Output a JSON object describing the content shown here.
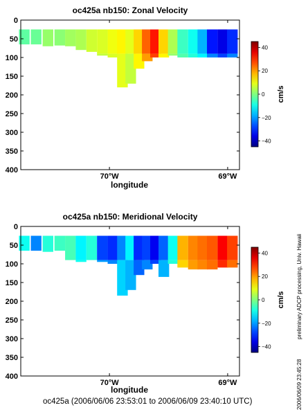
{
  "chart_data": [
    {
      "type": "heatmap",
      "title": "oc425a nb150: Zonal Velocity",
      "xlabel": "longitude",
      "ylabel": "",
      "x_tick_labels": [
        "70°W",
        "69°W"
      ],
      "x_ticks": [
        -70,
        -69
      ],
      "xlim": [
        -70.75,
        -68.9
      ],
      "ylim": [
        400,
        0
      ],
      "y_ticks": [
        0,
        50,
        100,
        150,
        200,
        250,
        300,
        350,
        400
      ],
      "y_tick_labels": [
        "0",
        "50",
        "100",
        "150",
        "200",
        "250",
        "300",
        "350",
        "400"
      ],
      "colorbar": {
        "label": "cm/s",
        "min": -45,
        "max": 45,
        "ticks": [
          40,
          20,
          0,
          -20,
          -40
        ],
        "tick_labels": [
          "40",
          "20",
          "0",
          "−20",
          "−40"
        ]
      },
      "grid": false,
      "description_of_field": "Zonal velocity section: weak westward (~-5 to 0 cm/s) on western shelf, strong eastward jet (~30 cm/s) near 69.6°W, strong westward flow (~-35 cm/s) near 69.1°W in upper 100 m",
      "columns": [
        {
          "lon": -70.72,
          "zmax": 65,
          "v": [
            -3,
            -2
          ]
        },
        {
          "lon": -70.62,
          "zmax": 65,
          "v": [
            -2,
            0
          ]
        },
        {
          "lon": -70.52,
          "zmax": 70,
          "v": [
            2,
            3
          ]
        },
        {
          "lon": -70.42,
          "zmax": 68,
          "v": [
            1,
            3
          ]
        },
        {
          "lon": -70.33,
          "zmax": 70,
          "v": [
            3,
            5
          ]
        },
        {
          "lon": -70.24,
          "zmax": 80,
          "v": [
            4,
            6
          ]
        },
        {
          "lon": -70.15,
          "zmax": 85,
          "v": [
            7,
            5
          ]
        },
        {
          "lon": -70.06,
          "zmax": 95,
          "v": [
            8,
            6
          ]
        },
        {
          "lon": -69.97,
          "zmax": 100,
          "v": [
            10,
            8
          ]
        },
        {
          "lon": -69.89,
          "zmax": 180,
          "v": [
            12,
            9
          ]
        },
        {
          "lon": -69.82,
          "zmax": 170,
          "v": [
            9,
            6
          ]
        },
        {
          "lon": -69.75,
          "zmax": 130,
          "v": [
            15,
            12
          ]
        },
        {
          "lon": -69.68,
          "zmax": 110,
          "v": [
            25,
            20
          ]
        },
        {
          "lon": -69.61,
          "zmax": 100,
          "v": [
            32,
            28
          ]
        },
        {
          "lon": -69.54,
          "zmax": 100,
          "v": [
            15,
            12
          ]
        },
        {
          "lon": -69.46,
          "zmax": 95,
          "v": [
            4,
            2
          ]
        },
        {
          "lon": -69.38,
          "zmax": 100,
          "v": [
            -6,
            -4
          ]
        },
        {
          "lon": -69.29,
          "zmax": 100,
          "v": [
            -10,
            -8
          ]
        },
        {
          "lon": -69.21,
          "zmax": 100,
          "v": [
            -18,
            -12
          ]
        },
        {
          "lon": -69.13,
          "zmax": 100,
          "v": [
            -32,
            -22
          ]
        },
        {
          "lon": -69.04,
          "zmax": 100,
          "v": [
            -36,
            -28
          ]
        },
        {
          "lon": -68.96,
          "zmax": 100,
          "v": [
            -30,
            -22
          ]
        }
      ]
    },
    {
      "type": "heatmap",
      "title": "oc425a nb150: Meridional Velocity",
      "xlabel": "longitude",
      "ylabel": "",
      "x_tick_labels": [
        "70°W",
        "69°W"
      ],
      "x_ticks": [
        -70,
        -69
      ],
      "xlim": [
        -70.75,
        -68.9
      ],
      "ylim": [
        400,
        0
      ],
      "y_ticks": [
        0,
        50,
        100,
        150,
        200,
        250,
        300,
        350,
        400
      ],
      "y_tick_labels": [
        "0",
        "50",
        "100",
        "150",
        "200",
        "250",
        "300",
        "350",
        "400"
      ],
      "colorbar": {
        "label": "cm/s",
        "min": -45,
        "max": 45,
        "ticks": [
          40,
          20,
          0,
          -20,
          -40
        ],
        "tick_labels": [
          "40",
          "20",
          "0",
          "−20",
          "−40"
        ]
      },
      "grid": false,
      "description_of_field": "Meridional velocity section: southward flow (~-15 to -35 cm/s) west of 69.4°W extending to ~200 m, northward flow (~20 to 35 cm/s) east of 69.4°W in upper 120 m",
      "columns": [
        {
          "lon": -70.72,
          "zmax": 65,
          "v": [
            -10,
            -8
          ]
        },
        {
          "lon": -70.62,
          "zmax": 65,
          "v": [
            -22,
            -15
          ]
        },
        {
          "lon": -70.52,
          "zmax": 68,
          "v": [
            -8,
            -6
          ]
        },
        {
          "lon": -70.42,
          "zmax": 65,
          "v": [
            -6,
            -8
          ]
        },
        {
          "lon": -70.33,
          "zmax": 90,
          "v": [
            -5,
            -8
          ]
        },
        {
          "lon": -70.24,
          "zmax": 95,
          "v": [
            -12,
            -10
          ]
        },
        {
          "lon": -70.15,
          "zmax": 90,
          "v": [
            -8,
            -6
          ]
        },
        {
          "lon": -70.06,
          "zmax": 95,
          "v": [
            -28,
            -20
          ]
        },
        {
          "lon": -69.97,
          "zmax": 100,
          "v": [
            -30,
            -22
          ]
        },
        {
          "lon": -69.89,
          "zmax": 185,
          "v": [
            -22,
            -15
          ]
        },
        {
          "lon": -69.82,
          "zmax": 170,
          "v": [
            -12,
            -18
          ]
        },
        {
          "lon": -69.75,
          "zmax": 130,
          "v": [
            -30,
            -25
          ]
        },
        {
          "lon": -69.68,
          "zmax": 115,
          "v": [
            -28,
            -22
          ]
        },
        {
          "lon": -69.61,
          "zmax": 100,
          "v": [
            -35,
            -28
          ]
        },
        {
          "lon": -69.54,
          "zmax": 135,
          "v": [
            -25,
            -18
          ]
        },
        {
          "lon": -69.46,
          "zmax": 100,
          "v": [
            -10,
            -8
          ]
        },
        {
          "lon": -69.38,
          "zmax": 110,
          "v": [
            18,
            15
          ]
        },
        {
          "lon": -69.29,
          "zmax": 115,
          "v": [
            22,
            20
          ]
        },
        {
          "lon": -69.21,
          "zmax": 115,
          "v": [
            24,
            22
          ]
        },
        {
          "lon": -69.13,
          "zmax": 115,
          "v": [
            26,
            24
          ]
        },
        {
          "lon": -69.04,
          "zmax": 110,
          "v": [
            34,
            30
          ]
        },
        {
          "lon": -68.96,
          "zmax": 110,
          "v": [
            28,
            24
          ]
        }
      ]
    }
  ],
  "footer": "oc425a (2006/06/06 23:53:01 to 2006/06/09 23:40:10 UTC)",
  "side_note": "preliminary ADCP processing,   Univ. Hawaii",
  "timestamp": "2006/06/09 23:45:28"
}
